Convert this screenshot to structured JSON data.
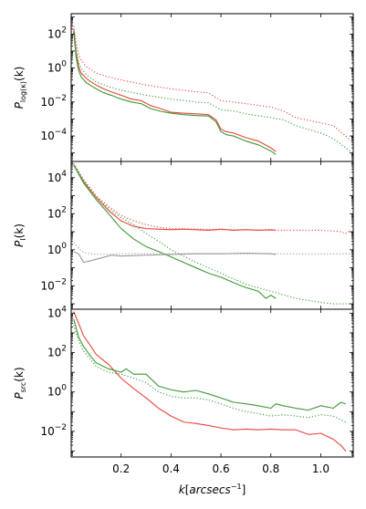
{
  "chart_data": [
    {
      "type": "line",
      "ylabel": "P_log(κ)(k)",
      "ylabel_main": "P",
      "ylabel_sub": "log(κ)",
      "ylabel_arg": "(k)",
      "xlim": [
        0.0,
        1.13
      ],
      "ylim_log10": [
        -5.5,
        3.2
      ],
      "scale": "log",
      "yticks": [
        {
          "exp": 2,
          "label": "10^2"
        },
        {
          "exp": 0,
          "label": "10^0"
        },
        {
          "exp": -2,
          "label": "10^-2"
        },
        {
          "exp": -4,
          "label": "10^-4"
        }
      ],
      "series": [
        {
          "color": "#e8463c",
          "style": "solid",
          "x": [
            0.01,
            0.02,
            0.03,
            0.04,
            0.06,
            0.08,
            0.1,
            0.13,
            0.16,
            0.2,
            0.24,
            0.28,
            0.32,
            0.36,
            0.4,
            0.45,
            0.5,
            0.55,
            0.58,
            0.6,
            0.62,
            0.65,
            0.7,
            0.75,
            0.8,
            0.82
          ],
          "y": [
            200,
            8,
            1.2,
            0.5,
            0.25,
            0.15,
            0.1,
            0.06,
            0.04,
            0.025,
            0.015,
            0.012,
            0.006,
            0.004,
            0.0025,
            0.0022,
            0.002,
            0.0018,
            0.0009,
            0.00025,
            0.00018,
            0.00015,
            8e-05,
            5e-05,
            2e-05,
            1.2e-05
          ]
        },
        {
          "color": "#3a9a32",
          "style": "solid",
          "x": [
            0.01,
            0.02,
            0.03,
            0.04,
            0.06,
            0.08,
            0.1,
            0.13,
            0.16,
            0.2,
            0.24,
            0.28,
            0.32,
            0.36,
            0.4,
            0.45,
            0.5,
            0.55,
            0.58,
            0.6,
            0.62,
            0.65,
            0.7,
            0.75,
            0.8,
            0.82
          ],
          "y": [
            150,
            4,
            0.7,
            0.3,
            0.14,
            0.09,
            0.06,
            0.035,
            0.025,
            0.015,
            0.01,
            0.008,
            0.004,
            0.0028,
            0.0022,
            0.0018,
            0.0016,
            0.0015,
            0.0007,
            0.00018,
            0.00012,
            0.0001,
            5e-05,
            3e-05,
            1.3e-05,
            8e-06
          ]
        },
        {
          "color": "#e8463c",
          "style": "dotted",
          "x": [
            0.01,
            0.02,
            0.03,
            0.04,
            0.06,
            0.08,
            0.1,
            0.15,
            0.2,
            0.3,
            0.4,
            0.5,
            0.55,
            0.6,
            0.65,
            0.7,
            0.8,
            0.85,
            0.9,
            1.0,
            1.05,
            1.1,
            1.12
          ],
          "y": [
            300,
            30,
            6,
            3,
            1.2,
            0.8,
            0.5,
            0.3,
            0.2,
            0.1,
            0.06,
            0.04,
            0.035,
            0.012,
            0.01,
            0.008,
            0.005,
            0.003,
            0.0012,
            0.0006,
            0.0004,
            0.0001,
            5e-05
          ]
        },
        {
          "color": "#3a9a32",
          "style": "dotted",
          "x": [
            0.01,
            0.02,
            0.03,
            0.04,
            0.06,
            0.08,
            0.1,
            0.15,
            0.2,
            0.3,
            0.4,
            0.5,
            0.55,
            0.6,
            0.65,
            0.7,
            0.8,
            0.85,
            0.9,
            1.0,
            1.05,
            1.1,
            1.12
          ],
          "y": [
            120,
            10,
            2,
            1,
            0.4,
            0.25,
            0.15,
            0.08,
            0.05,
            0.025,
            0.015,
            0.01,
            0.009,
            0.0035,
            0.003,
            0.002,
            0.0012,
            0.0009,
            0.0004,
            0.00015,
            7e-05,
            2e-05,
            1.2e-05
          ]
        }
      ]
    },
    {
      "type": "line",
      "ylabel": "P_I(k)",
      "ylabel_main": "P",
      "ylabel_sub": "I",
      "ylabel_arg": "(k)",
      "xlim": [
        0.0,
        1.13
      ],
      "ylim_log10": [
        -3.3,
        4.9
      ],
      "scale": "log",
      "yticks": [
        {
          "exp": 4,
          "label": "10^4"
        },
        {
          "exp": 2,
          "label": "10^2"
        },
        {
          "exp": 0,
          "label": "10^0"
        },
        {
          "exp": -2,
          "label": "10^-2"
        }
      ],
      "series": [
        {
          "color": "#e8463c",
          "style": "solid",
          "x": [
            0.01,
            0.05,
            0.1,
            0.15,
            0.2,
            0.25,
            0.3,
            0.35,
            0.4,
            0.45,
            0.5,
            0.55,
            0.6,
            0.65,
            0.7,
            0.75,
            0.8,
            0.82
          ],
          "y": [
            50000,
            6000,
            800,
            150,
            40,
            20,
            15,
            14,
            13,
            14,
            13,
            12,
            14,
            12,
            13,
            12,
            13,
            12
          ]
        },
        {
          "color": "#3a9a32",
          "style": "solid",
          "x": [
            0.01,
            0.05,
            0.1,
            0.15,
            0.2,
            0.25,
            0.3,
            0.35,
            0.4,
            0.45,
            0.5,
            0.55,
            0.6,
            0.65,
            0.7,
            0.75,
            0.78,
            0.8,
            0.82
          ],
          "y": [
            50000,
            5000,
            600,
            100,
            15,
            4,
            1.5,
            0.8,
            0.4,
            0.2,
            0.1,
            0.05,
            0.03,
            0.015,
            0.008,
            0.005,
            0.002,
            0.003,
            0.002
          ]
        },
        {
          "color": "#999999",
          "style": "solid",
          "x": [
            0.01,
            0.03,
            0.05,
            0.08,
            0.12,
            0.16,
            0.2,
            0.3,
            0.4,
            0.5,
            0.6,
            0.7,
            0.8,
            0.82
          ],
          "y": [
            0.8,
            0.6,
            0.2,
            0.25,
            0.35,
            0.5,
            0.45,
            0.5,
            0.55,
            0.6,
            0.6,
            0.65,
            0.6,
            0.55
          ]
        },
        {
          "color": "#e8463c",
          "style": "dotted",
          "x": [
            0.01,
            0.05,
            0.1,
            0.15,
            0.2,
            0.25,
            0.3,
            0.35,
            0.4,
            0.5,
            0.6,
            0.7,
            0.8,
            0.9,
            1.0,
            1.05,
            1.08,
            1.1,
            1.12
          ],
          "y": [
            60000,
            8000,
            1000,
            250,
            80,
            40,
            25,
            18,
            15,
            14,
            13,
            13,
            12,
            12,
            12,
            11,
            10,
            8,
            12
          ]
        },
        {
          "color": "#3a9a32",
          "style": "dotted",
          "x": [
            0.01,
            0.05,
            0.1,
            0.15,
            0.2,
            0.25,
            0.3,
            0.35,
            0.4,
            0.5,
            0.6,
            0.7,
            0.8,
            0.9,
            1.0,
            1.05,
            1.1,
            1.12
          ],
          "y": [
            60000,
            7000,
            900,
            200,
            60,
            25,
            8,
            3,
            1.0,
            0.2,
            0.05,
            0.012,
            0.005,
            0.002,
            0.0012,
            0.001,
            0.001,
            0.001
          ]
        },
        {
          "color": "#999999",
          "style": "dotted",
          "x": [
            0.01,
            0.03,
            0.05,
            0.08,
            0.12,
            0.2,
            0.3,
            0.4,
            0.5,
            0.6,
            0.7,
            0.8,
            0.9,
            1.0,
            1.1,
            1.12
          ],
          "y": [
            2.5,
            1.2,
            0.7,
            0.6,
            0.55,
            0.6,
            0.6,
            0.6,
            0.6,
            0.6,
            0.6,
            0.6,
            0.6,
            0.6,
            0.6,
            0.6
          ]
        }
      ]
    },
    {
      "type": "line",
      "ylabel": "P_src(k)",
      "ylabel_main": "P",
      "ylabel_sub": "src",
      "ylabel_arg": "(k)",
      "xlabel": "k[arcsecs^-1]",
      "xlabel_main": "k",
      "xlabel_unit": "arcsecs",
      "xlabel_exp": "−1",
      "xlim": [
        0.0,
        1.13
      ],
      "ylim_log10": [
        -3.3,
        4.2
      ],
      "scale": "log",
      "xticks": [
        {
          "value": 0.2,
          "label": "0.2"
        },
        {
          "value": 0.4,
          "label": "0.4"
        },
        {
          "value": 0.6,
          "label": "0.6"
        },
        {
          "value": 0.8,
          "label": "0.8"
        },
        {
          "value": 1.0,
          "label": "1.0"
        }
      ],
      "yticks": [
        {
          "exp": 4,
          "label": "10^4"
        },
        {
          "exp": 2,
          "label": "10^2"
        },
        {
          "exp": 0,
          "label": "10^0"
        },
        {
          "exp": -2,
          "label": "10^-2"
        }
      ],
      "series": [
        {
          "color": "#e8463c",
          "style": "solid",
          "x": [
            0.01,
            0.03,
            0.05,
            0.08,
            0.1,
            0.15,
            0.2,
            0.25,
            0.3,
            0.35,
            0.4,
            0.45,
            0.5,
            0.55,
            0.6,
            0.65,
            0.7,
            0.75,
            0.8,
            0.85,
            0.9,
            0.95,
            1.0,
            1.05,
            1.08,
            1.1
          ],
          "y": [
            12000,
            3000,
            700,
            200,
            80,
            25,
            5,
            1.5,
            0.5,
            0.15,
            0.06,
            0.03,
            0.025,
            0.02,
            0.015,
            0.012,
            0.013,
            0.012,
            0.013,
            0.012,
            0.012,
            0.007,
            0.008,
            0.004,
            0.002,
            0.001
          ]
        },
        {
          "color": "#3a9a32",
          "style": "solid",
          "x": [
            0.01,
            0.03,
            0.05,
            0.08,
            0.1,
            0.15,
            0.2,
            0.22,
            0.25,
            0.3,
            0.35,
            0.4,
            0.45,
            0.5,
            0.55,
            0.6,
            0.65,
            0.7,
            0.75,
            0.8,
            0.82,
            0.85,
            0.9,
            0.95,
            1.0,
            1.05,
            1.08,
            1.1
          ],
          "y": [
            5000,
            600,
            200,
            60,
            30,
            15,
            10,
            15,
            8,
            8,
            2,
            1.3,
            1.0,
            1.2,
            0.8,
            0.5,
            0.3,
            0.25,
            0.2,
            0.15,
            0.25,
            0.2,
            0.15,
            0.12,
            0.2,
            0.15,
            0.3,
            0.25
          ]
        },
        {
          "color": "#3a9a32",
          "style": "dotted",
          "x": [
            0.01,
            0.03,
            0.05,
            0.08,
            0.1,
            0.15,
            0.2,
            0.25,
            0.3,
            0.35,
            0.4,
            0.45,
            0.5,
            0.55,
            0.6,
            0.65,
            0.7,
            0.75,
            0.8,
            0.85,
            0.9,
            0.95,
            1.0,
            1.05,
            1.1
          ],
          "y": [
            2500,
            400,
            120,
            40,
            20,
            10,
            8,
            5,
            3,
            1,
            0.6,
            0.5,
            0.5,
            0.4,
            0.25,
            0.15,
            0.1,
            0.08,
            0.06,
            0.07,
            0.06,
            0.05,
            0.07,
            0.06,
            0.03
          ]
        }
      ]
    }
  ]
}
